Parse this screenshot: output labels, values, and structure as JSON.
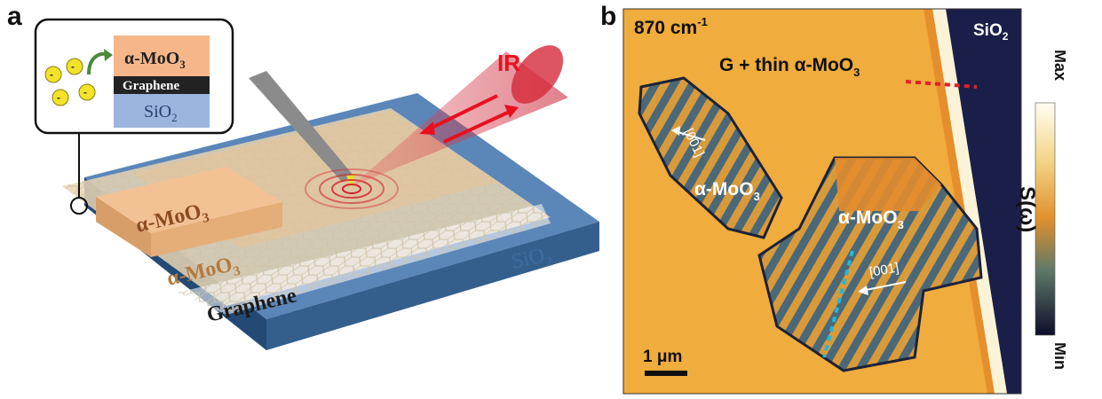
{
  "figure": {
    "panel_a": {
      "letter": "a",
      "inset_layers": {
        "top": "α-MoO",
        "top_sub": "3",
        "middle": "Graphene",
        "bottom": "SiO",
        "bottom_sub": "2"
      },
      "beam_label": "IR",
      "flake_top_label": "α-MoO",
      "flake_top_sub": "3",
      "flake_bottom_label": "α-MoO",
      "flake_bottom_sub": "3",
      "graphene_label": "Graphene",
      "substrate_label": "SiO",
      "substrate_sub": "2",
      "colors": {
        "substrate_top": "#5b86b8",
        "substrate_side": "#2f5f8f",
        "graphene": "#e9d4b0",
        "moo3": "#f2c090",
        "moo3_text": "#8a4b22",
        "beam": "#d81e2a",
        "inset_moo3": "#f7b68a",
        "inset_graphene": "#222222",
        "inset_sio2": "#9bb5de"
      }
    },
    "panel_b": {
      "letter": "b",
      "frequency": "870 cm",
      "frequency_sup": "-1",
      "region_label": "G + thin α-MoO",
      "region_sub": "3",
      "flake1_label": "α-MoO",
      "flake1_sub": "3",
      "flake2_label": "α-MoO",
      "flake2_sub": "3",
      "direction1": "[001]",
      "direction2": "[001]",
      "substrate_label": "SiO",
      "substrate_sub": "2",
      "scale_bar_label": "1 μm",
      "colorbar": {
        "max": "Max",
        "min": "Min",
        "quantity": "S(ω)"
      },
      "colors": {
        "background": "#f0ac3c",
        "flake_fill": "#5a7a70",
        "fringe_dark": "#35506a",
        "fringe_light": "#d99a3a",
        "sio2": "#1a1f4a",
        "line_red": "#e0202a",
        "line_cyan": "#20b8d8"
      }
    }
  }
}
